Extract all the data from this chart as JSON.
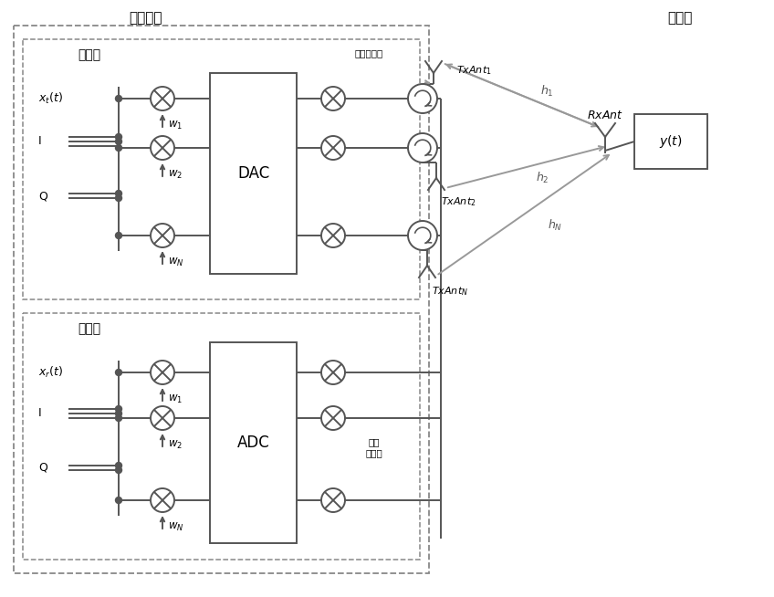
{
  "bg_color": "#ffffff",
  "lc": "#555555",
  "gc": "#999999",
  "dc": "#888888",
  "figure_size": [
    8.48,
    6.54
  ],
  "dpi": 100,
  "title_kyuden": "給電装置",
  "title_soshin": "送信系",
  "title_jushin": "受信系",
  "title_sensa": "センサ",
  "label_chokko_hencho": "直交変調器",
  "label_chokko_fukucho": "直交\n復調器",
  "label_dac": "DAC",
  "label_adc": "ADC",
  "label_xt": "$x_t(t)$",
  "label_xr": "$x_r(t)$",
  "label_I": "I",
  "label_Q": "Q",
  "label_w1": "$w_1$",
  "label_w2": "$w_2$",
  "label_wN": "$w_N$",
  "label_txant1": "$TxAnt_1$",
  "label_txant2": "$TxAnt_2$",
  "label_txantN": "$TxAnt_N$",
  "label_rxant": "$RxAnt$",
  "label_yt": "$y(t)$",
  "label_h1": "$h_1$",
  "label_h2": "$h_2$",
  "label_hN": "$h_N$"
}
